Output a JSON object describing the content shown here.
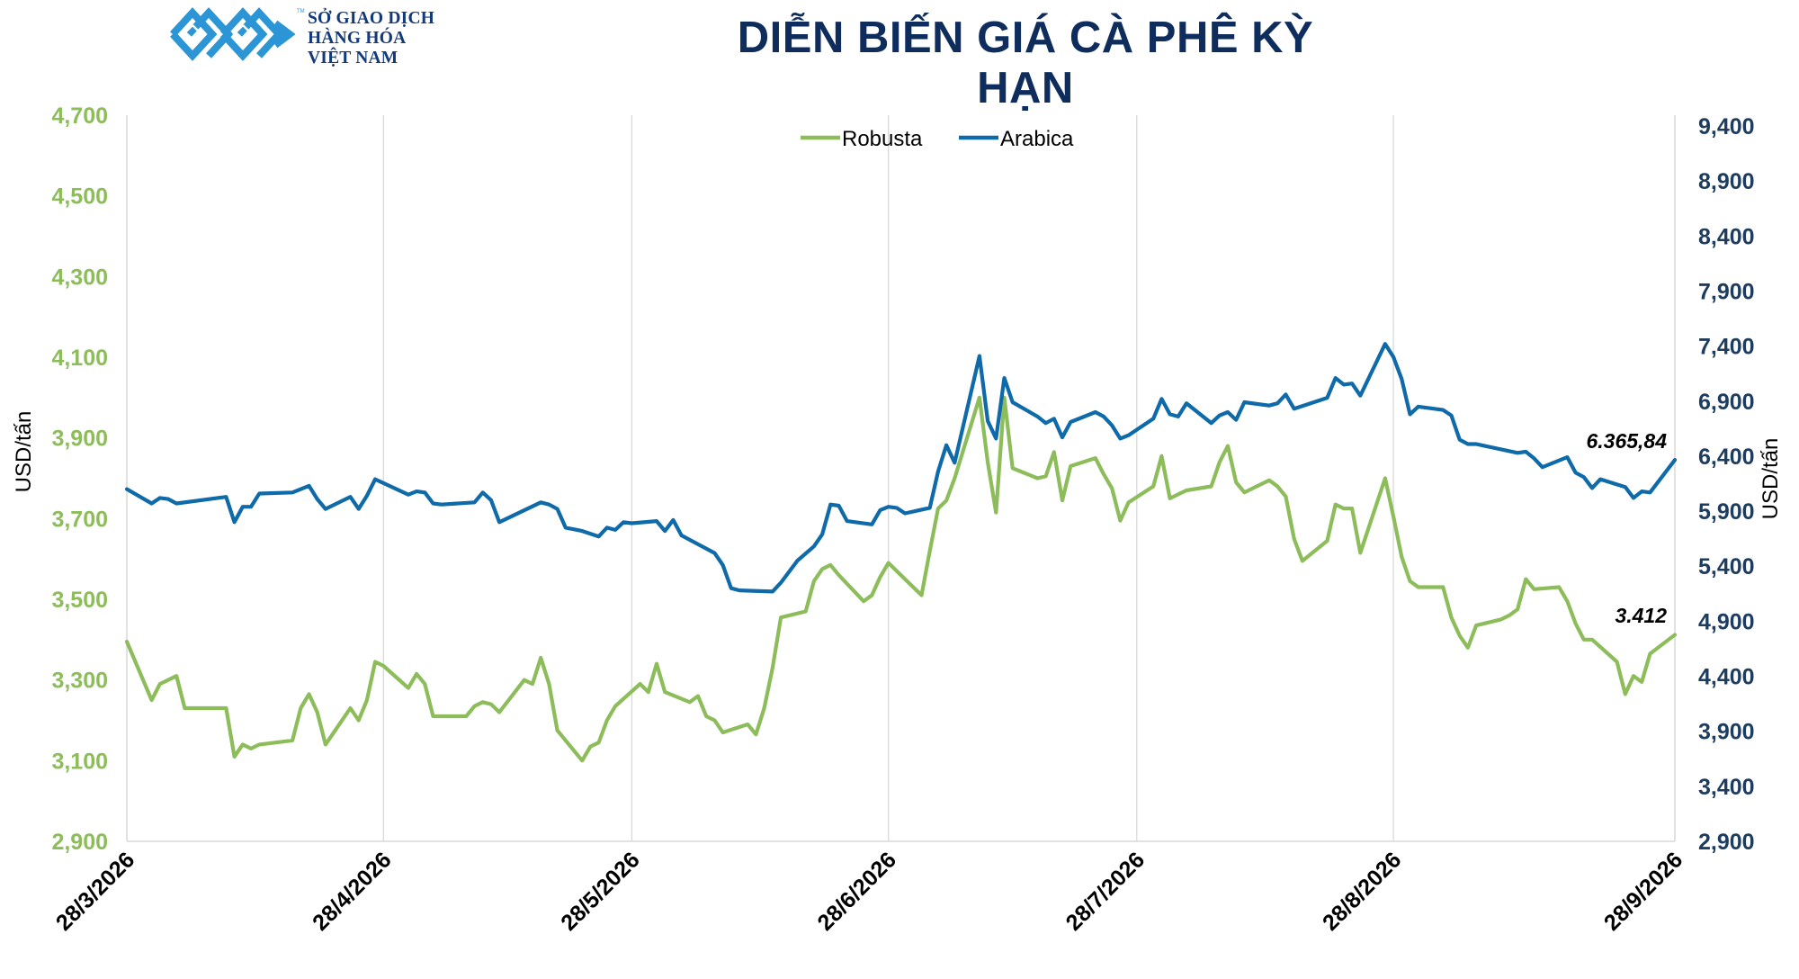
{
  "header": {
    "org_lines": [
      "SỞ GIAO DỊCH",
      "HÀNG HÓA",
      "VIỆT NAM"
    ],
    "trademark": "TM",
    "title": "DIỄN BIẾN GIÁ CÀ PHÊ KỲ HẠN"
  },
  "colors": {
    "robusta": "#8dbd5a",
    "arabica": "#0e6aa9",
    "logo": "#2b95d6",
    "title": "#0f2d5c",
    "right_axis": "#1d3c5e",
    "grid": "#d9d9d9"
  },
  "chart_data": {
    "type": "line",
    "x_labels": [
      "28/3/2026",
      "28/4/2026",
      "28/5/2026",
      "28/6/2026",
      "28/7/2026",
      "28/8/2026",
      "28/9/2026"
    ],
    "left_axis": {
      "label": "USD/tấn",
      "min": 2900,
      "max": 4700,
      "ticks": [
        "2,900",
        "3,100",
        "3,300",
        "3,500",
        "3,700",
        "3,900",
        "4,100",
        "4,300",
        "4,500",
        "4,700"
      ]
    },
    "right_axis": {
      "label": "USD/tấn",
      "min": 2900,
      "max": 9400,
      "ticks": [
        "2,900",
        "3,400",
        "3,900",
        "4,400",
        "4,900",
        "5,400",
        "5,900",
        "6,400",
        "6,900",
        "7,400",
        "7,900",
        "8,400",
        "8,900",
        "9,400"
      ]
    },
    "legend_position": "top-center",
    "grid": "vertical",
    "series": [
      {
        "name": "Robusta",
        "axis": "left",
        "last_label": "3.412",
        "points": [
          [
            "2026-03-28",
            3395
          ],
          [
            "2026-03-31",
            3250
          ],
          [
            "2026-04-01",
            3290
          ],
          [
            "2026-04-03",
            3310
          ],
          [
            "2026-04-04",
            3230
          ],
          [
            "2026-04-09",
            3230
          ],
          [
            "2026-04-10",
            3110
          ],
          [
            "2026-04-11",
            3140
          ],
          [
            "2026-04-12",
            3130
          ],
          [
            "2026-04-13",
            3140
          ],
          [
            "2026-04-17",
            3150
          ],
          [
            "2026-04-18",
            3230
          ],
          [
            "2026-04-19",
            3265
          ],
          [
            "2026-04-20",
            3220
          ],
          [
            "2026-04-21",
            3140
          ],
          [
            "2026-04-24",
            3230
          ],
          [
            "2026-04-25",
            3200
          ],
          [
            "2026-04-26",
            3250
          ],
          [
            "2026-04-27",
            3345
          ],
          [
            "2026-04-28",
            3335
          ],
          [
            "2026-05-01",
            3280
          ],
          [
            "2026-05-02",
            3315
          ],
          [
            "2026-05-03",
            3290
          ],
          [
            "2026-05-04",
            3210
          ],
          [
            "2026-05-08",
            3210
          ],
          [
            "2026-05-09",
            3235
          ],
          [
            "2026-05-10",
            3245
          ],
          [
            "2026-05-11",
            3240
          ],
          [
            "2026-05-12",
            3220
          ],
          [
            "2026-05-15",
            3300
          ],
          [
            "2026-05-16",
            3290
          ],
          [
            "2026-05-17",
            3355
          ],
          [
            "2026-05-18",
            3290
          ],
          [
            "2026-05-19",
            3175
          ],
          [
            "2026-05-22",
            3100
          ],
          [
            "2026-05-23",
            3135
          ],
          [
            "2026-05-24",
            3145
          ],
          [
            "2026-05-25",
            3200
          ],
          [
            "2026-05-26",
            3235
          ],
          [
            "2026-05-29",
            3290
          ],
          [
            "2026-05-30",
            3270
          ],
          [
            "2026-05-31",
            3340
          ],
          [
            "2026-06-01",
            3270
          ],
          [
            "2026-06-04",
            3245
          ],
          [
            "2026-06-05",
            3260
          ],
          [
            "2026-06-06",
            3210
          ],
          [
            "2026-06-07",
            3200
          ],
          [
            "2026-06-08",
            3170
          ],
          [
            "2026-06-11",
            3190
          ],
          [
            "2026-06-12",
            3165
          ],
          [
            "2026-06-13",
            3230
          ],
          [
            "2026-06-14",
            3330
          ],
          [
            "2026-06-15",
            3455
          ],
          [
            "2026-06-18",
            3470
          ],
          [
            "2026-06-19",
            3545
          ],
          [
            "2026-06-20",
            3575
          ],
          [
            "2026-06-21",
            3585
          ],
          [
            "2026-06-22",
            3560
          ],
          [
            "2026-06-25",
            3495
          ],
          [
            "2026-06-26",
            3510
          ],
          [
            "2026-06-27",
            3555
          ],
          [
            "2026-06-28",
            3590
          ],
          [
            "2026-06-29",
            3570
          ],
          [
            "2026-07-02",
            3510
          ],
          [
            "2026-07-03",
            3620
          ],
          [
            "2026-07-04",
            3725
          ],
          [
            "2026-07-05",
            3745
          ],
          [
            "2026-07-06",
            3800
          ],
          [
            "2026-07-09",
            4000
          ],
          [
            "2026-07-10",
            3840
          ],
          [
            "2026-07-11",
            3715
          ],
          [
            "2026-07-12",
            4000
          ],
          [
            "2026-07-13",
            3825
          ],
          [
            "2026-07-16",
            3800
          ],
          [
            "2026-07-17",
            3805
          ],
          [
            "2026-07-18",
            3865
          ],
          [
            "2026-07-19",
            3745
          ],
          [
            "2026-07-20",
            3830
          ],
          [
            "2026-07-23",
            3850
          ],
          [
            "2026-07-24",
            3810
          ],
          [
            "2026-07-25",
            3775
          ],
          [
            "2026-07-26",
            3695
          ],
          [
            "2026-07-27",
            3740
          ],
          [
            "2026-07-30",
            3780
          ],
          [
            "2026-07-31",
            3855
          ],
          [
            "2026-08-01",
            3750
          ],
          [
            "2026-08-02",
            3760
          ],
          [
            "2026-08-03",
            3770
          ],
          [
            "2026-08-06",
            3780
          ],
          [
            "2026-08-07",
            3840
          ],
          [
            "2026-08-08",
            3880
          ],
          [
            "2026-08-09",
            3790
          ],
          [
            "2026-08-10",
            3765
          ],
          [
            "2026-08-13",
            3795
          ],
          [
            "2026-08-14",
            3780
          ],
          [
            "2026-08-15",
            3755
          ],
          [
            "2026-08-16",
            3650
          ],
          [
            "2026-08-17",
            3595
          ],
          [
            "2026-08-20",
            3645
          ],
          [
            "2026-08-21",
            3735
          ],
          [
            "2026-08-22",
            3725
          ],
          [
            "2026-08-23",
            3725
          ],
          [
            "2026-08-24",
            3615
          ],
          [
            "2026-08-27",
            3800
          ],
          [
            "2026-08-28",
            3705
          ],
          [
            "2026-08-29",
            3605
          ],
          [
            "2026-08-30",
            3545
          ],
          [
            "2026-08-31",
            3530
          ],
          [
            "2026-09-03",
            3530
          ],
          [
            "2026-09-04",
            3455
          ],
          [
            "2026-09-05",
            3410
          ],
          [
            "2026-09-06",
            3380
          ],
          [
            "2026-09-07",
            3435
          ],
          [
            "2026-09-10",
            3450
          ],
          [
            "2026-09-11",
            3460
          ],
          [
            "2026-09-12",
            3475
          ],
          [
            "2026-09-13",
            3550
          ],
          [
            "2026-09-14",
            3525
          ],
          [
            "2026-09-17",
            3530
          ],
          [
            "2026-09-18",
            3495
          ],
          [
            "2026-09-19",
            3440
          ],
          [
            "2026-09-20",
            3400
          ],
          [
            "2026-09-21",
            3400
          ],
          [
            "2026-09-24",
            3345
          ],
          [
            "2026-09-25",
            3265
          ],
          [
            "2026-09-26",
            3310
          ],
          [
            "2026-09-27",
            3295
          ],
          [
            "2026-09-28",
            3365
          ],
          [
            "2026-10-01",
            3412
          ]
        ]
      },
      {
        "name": "Arabica",
        "axis": "right",
        "last_label": "6.365,84",
        "points": [
          [
            "2026-03-28",
            6100
          ],
          [
            "2026-03-31",
            5970
          ],
          [
            "2026-04-01",
            6020
          ],
          [
            "2026-04-02",
            6010
          ],
          [
            "2026-04-03",
            5970
          ],
          [
            "2026-04-09",
            6030
          ],
          [
            "2026-04-10",
            5800
          ],
          [
            "2026-04-11",
            5940
          ],
          [
            "2026-04-12",
            5940
          ],
          [
            "2026-04-13",
            6060
          ],
          [
            "2026-04-17",
            6070
          ],
          [
            "2026-04-19",
            6130
          ],
          [
            "2026-04-20",
            6010
          ],
          [
            "2026-04-21",
            5920
          ],
          [
            "2026-04-24",
            6030
          ],
          [
            "2026-04-25",
            5920
          ],
          [
            "2026-04-26",
            6040
          ],
          [
            "2026-04-27",
            6190
          ],
          [
            "2026-05-01",
            6050
          ],
          [
            "2026-05-02",
            6080
          ],
          [
            "2026-05-03",
            6070
          ],
          [
            "2026-05-04",
            5970
          ],
          [
            "2026-05-05",
            5960
          ],
          [
            "2026-05-09",
            5980
          ],
          [
            "2026-05-10",
            6070
          ],
          [
            "2026-05-11",
            6000
          ],
          [
            "2026-05-12",
            5800
          ],
          [
            "2026-05-17",
            5980
          ],
          [
            "2026-05-18",
            5960
          ],
          [
            "2026-05-19",
            5920
          ],
          [
            "2026-05-20",
            5750
          ],
          [
            "2026-05-22",
            5720
          ],
          [
            "2026-05-24",
            5670
          ],
          [
            "2026-05-25",
            5750
          ],
          [
            "2026-05-26",
            5730
          ],
          [
            "2026-05-27",
            5800
          ],
          [
            "2026-05-28",
            5790
          ],
          [
            "2026-05-31",
            5810
          ],
          [
            "2026-06-01",
            5720
          ],
          [
            "2026-06-02",
            5820
          ],
          [
            "2026-06-03",
            5680
          ],
          [
            "2026-06-07",
            5520
          ],
          [
            "2026-06-08",
            5410
          ],
          [
            "2026-06-09",
            5200
          ],
          [
            "2026-06-10",
            5180
          ],
          [
            "2026-06-14",
            5170
          ],
          [
            "2026-06-15",
            5250
          ],
          [
            "2026-06-17",
            5450
          ],
          [
            "2026-06-19",
            5580
          ],
          [
            "2026-06-20",
            5690
          ],
          [
            "2026-06-21",
            5960
          ],
          [
            "2026-06-22",
            5950
          ],
          [
            "2026-06-23",
            5810
          ],
          [
            "2026-06-26",
            5780
          ],
          [
            "2026-06-27",
            5910
          ],
          [
            "2026-06-28",
            5940
          ],
          [
            "2026-06-29",
            5930
          ],
          [
            "2026-06-30",
            5880
          ],
          [
            "2026-07-03",
            5930
          ],
          [
            "2026-07-04",
            6260
          ],
          [
            "2026-07-05",
            6500
          ],
          [
            "2026-07-06",
            6340
          ],
          [
            "2026-07-09",
            7310
          ],
          [
            "2026-07-10",
            6720
          ],
          [
            "2026-07-11",
            6560
          ],
          [
            "2026-07-12",
            7110
          ],
          [
            "2026-07-13",
            6890
          ],
          [
            "2026-07-16",
            6760
          ],
          [
            "2026-07-17",
            6700
          ],
          [
            "2026-07-18",
            6740
          ],
          [
            "2026-07-19",
            6570
          ],
          [
            "2026-07-20",
            6710
          ],
          [
            "2026-07-23",
            6800
          ],
          [
            "2026-07-24",
            6760
          ],
          [
            "2026-07-25",
            6680
          ],
          [
            "2026-07-26",
            6560
          ],
          [
            "2026-07-27",
            6590
          ],
          [
            "2026-07-30",
            6740
          ],
          [
            "2026-07-31",
            6920
          ],
          [
            "2026-08-01",
            6780
          ],
          [
            "2026-08-02",
            6760
          ],
          [
            "2026-08-03",
            6880
          ],
          [
            "2026-08-06",
            6700
          ],
          [
            "2026-08-07",
            6770
          ],
          [
            "2026-08-08",
            6800
          ],
          [
            "2026-08-09",
            6730
          ],
          [
            "2026-08-10",
            6890
          ],
          [
            "2026-08-13",
            6860
          ],
          [
            "2026-08-14",
            6880
          ],
          [
            "2026-08-15",
            6960
          ],
          [
            "2026-08-16",
            6830
          ],
          [
            "2026-08-20",
            6930
          ],
          [
            "2026-08-21",
            7110
          ],
          [
            "2026-08-22",
            7050
          ],
          [
            "2026-08-23",
            7060
          ],
          [
            "2026-08-24",
            6950
          ],
          [
            "2026-08-27",
            7420
          ],
          [
            "2026-08-28",
            7300
          ],
          [
            "2026-08-29",
            7100
          ],
          [
            "2026-08-30",
            6780
          ],
          [
            "2026-08-31",
            6850
          ],
          [
            "2026-09-03",
            6820
          ],
          [
            "2026-09-04",
            6770
          ],
          [
            "2026-09-05",
            6550
          ],
          [
            "2026-09-06",
            6510
          ],
          [
            "2026-09-07",
            6510
          ],
          [
            "2026-09-12",
            6430
          ],
          [
            "2026-09-13",
            6440
          ],
          [
            "2026-09-14",
            6380
          ],
          [
            "2026-09-15",
            6300
          ],
          [
            "2026-09-18",
            6390
          ],
          [
            "2026-09-19",
            6250
          ],
          [
            "2026-09-20",
            6210
          ],
          [
            "2026-09-21",
            6110
          ],
          [
            "2026-09-22",
            6190
          ],
          [
            "2026-09-25",
            6120
          ],
          [
            "2026-09-26",
            6020
          ],
          [
            "2026-09-27",
            6080
          ],
          [
            "2026-09-28",
            6070
          ],
          [
            "2026-10-01",
            6365.84
          ]
        ]
      }
    ]
  }
}
